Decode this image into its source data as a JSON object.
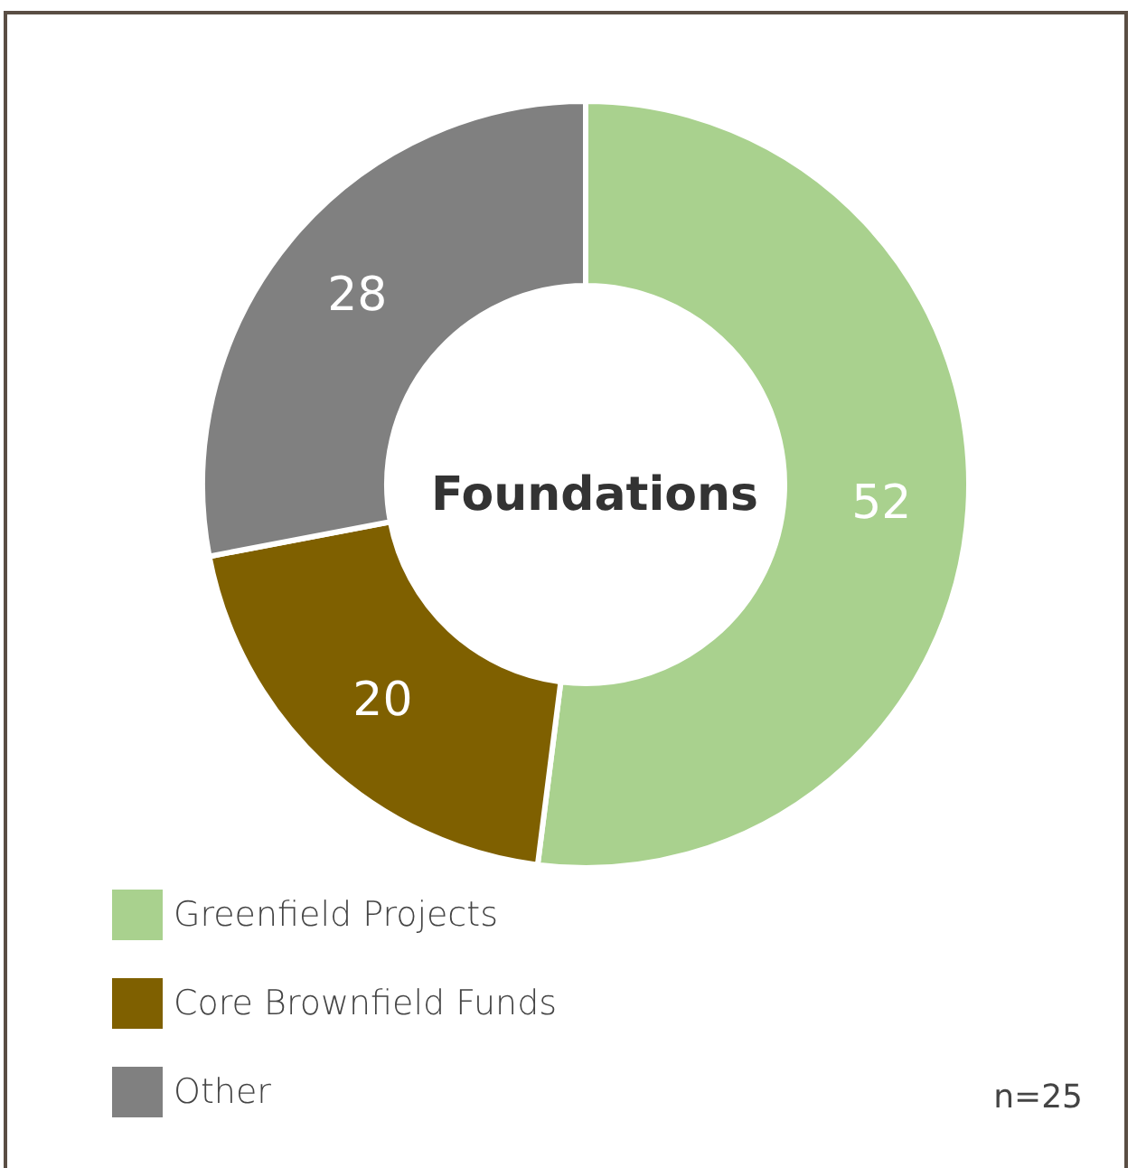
{
  "chart_data": {
    "type": "donut",
    "title": "Foundations",
    "categories": [
      "Greenfield Projects",
      "Core Brownfield Funds",
      "Other"
    ],
    "values": [
      52,
      20,
      28
    ],
    "colors": [
      "#a9d18e",
      "#7f6000",
      "#808080"
    ],
    "data_labels": true,
    "legend": "bottom left",
    "annotations": [
      "n=25"
    ]
  }
}
